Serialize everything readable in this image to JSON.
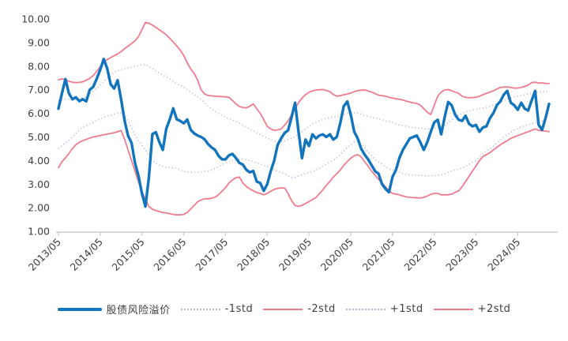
{
  "chart_data": {
    "type": "line",
    "title": "",
    "background": "#FFFFFF",
    "axis_color": "#CFCFCF",
    "text_color": "#3F3F3F",
    "grid": false,
    "legend_position": "bottom",
    "ylim": [
      1,
      10
    ],
    "y_tick_step": 1,
    "y_tick_labels": [
      "10.00",
      "9.00",
      "8.00",
      "7.00",
      "6.00",
      "5.00",
      "4.00",
      "3.00",
      "2.00",
      "1.00"
    ],
    "x_start": "2013/05",
    "x_end": "2025/02",
    "x_interval": "monthly",
    "x_tick_labels": [
      "2013/05",
      "2014/05",
      "2015/05",
      "2016/05",
      "2017/05",
      "2018/05",
      "2019/05",
      "2020/05",
      "2021/05",
      "2022/05",
      "2023/05",
      "2024/05"
    ],
    "series": [
      {
        "key": "risk-premium",
        "name": "股债风险溢价",
        "color": "#1274BC",
        "style": "solid",
        "width": 3.4,
        "z": 2,
        "values": [
          6.2,
          6.85,
          7.45,
          6.85,
          6.6,
          6.68,
          6.52,
          6.6,
          6.51,
          7.0,
          7.12,
          7.46,
          7.85,
          8.3,
          7.9,
          7.23,
          7.05,
          7.4,
          6.6,
          5.7,
          5.05,
          4.75,
          3.9,
          3.35,
          2.6,
          2.05,
          3.3,
          5.12,
          5.2,
          4.78,
          4.45,
          5.35,
          5.75,
          6.21,
          5.75,
          5.68,
          5.58,
          5.74,
          5.3,
          5.15,
          5.06,
          5.0,
          4.9,
          4.7,
          4.56,
          4.45,
          4.2,
          4.05,
          4.05,
          4.22,
          4.28,
          4.11,
          3.9,
          3.83,
          3.61,
          3.5,
          3.56,
          3.11,
          3.05,
          2.72,
          3.0,
          3.55,
          4.0,
          4.67,
          4.94,
          5.17,
          5.28,
          5.84,
          6.45,
          5.22,
          4.1,
          4.89,
          4.62,
          5.11,
          4.94,
          5.06,
          5.11,
          5.0,
          5.11,
          4.89,
          5.0,
          5.58,
          6.3,
          6.5,
          5.95,
          5.22,
          4.94,
          4.5,
          4.25,
          4.05,
          3.8,
          3.55,
          3.44,
          3.0,
          2.8,
          2.66,
          3.3,
          3.6,
          4.11,
          4.45,
          4.7,
          4.94,
          5.0,
          5.06,
          4.78,
          4.45,
          4.78,
          5.22,
          5.62,
          5.73,
          5.11,
          5.84,
          6.48,
          6.34,
          5.95,
          5.73,
          5.68,
          5.9,
          5.56,
          5.45,
          5.51,
          5.22,
          5.4,
          5.45,
          5.79,
          6.01,
          6.34,
          6.51,
          6.79,
          6.95,
          6.45,
          6.34,
          6.15,
          6.45,
          6.2,
          6.12,
          6.55,
          6.95,
          5.52,
          5.3,
          5.8,
          6.4
        ]
      },
      {
        "key": "minus-1std",
        "name": "-1std",
        "color": "#B9B6DB",
        "style": "dotted",
        "width": 1.7,
        "z": 1,
        "values": [
          4.5,
          4.62,
          4.75,
          4.85,
          5.0,
          5.15,
          5.28,
          5.4,
          5.48,
          5.55,
          5.62,
          5.7,
          5.75,
          5.82,
          5.88,
          5.92,
          5.97,
          6.0,
          6.03,
          5.9,
          5.7,
          5.4,
          5.08,
          4.85,
          4.65,
          4.45,
          4.2,
          4.0,
          3.89,
          3.8,
          3.75,
          3.72,
          3.7,
          3.68,
          3.67,
          3.6,
          3.55,
          3.52,
          3.5,
          3.5,
          3.5,
          3.52,
          3.55,
          3.56,
          3.6,
          3.67,
          3.74,
          3.82,
          3.89,
          3.95,
          4.0,
          4.03,
          4.06,
          4.06,
          4.03,
          4.0,
          3.95,
          3.9,
          3.85,
          3.8,
          3.75,
          3.7,
          3.62,
          3.55,
          3.5,
          3.44,
          3.35,
          3.28,
          3.3,
          3.35,
          3.4,
          3.46,
          3.5,
          3.54,
          3.61,
          3.68,
          3.77,
          3.85,
          3.94,
          4.02,
          4.11,
          4.25,
          4.4,
          4.55,
          4.68,
          4.78,
          4.8,
          4.7,
          4.56,
          4.35,
          4.22,
          4.05,
          3.94,
          3.85,
          3.72,
          3.65,
          3.6,
          3.56,
          3.5,
          3.44,
          3.41,
          3.39,
          3.38,
          3.38,
          3.37,
          3.36,
          3.35,
          3.35,
          3.36,
          3.37,
          3.39,
          3.44,
          3.5,
          3.56,
          3.61,
          3.64,
          3.67,
          3.75,
          3.84,
          3.93,
          4.02,
          4.15,
          4.28,
          4.42,
          4.5,
          4.6,
          4.75,
          4.88,
          5.0,
          5.1,
          5.2,
          5.3,
          5.36,
          5.42,
          5.47,
          5.52,
          5.56,
          5.6,
          5.64,
          5.67,
          5.7,
          5.72
        ]
      },
      {
        "key": "minus-2std",
        "name": "-2std",
        "color": "#EE7C8E",
        "style": "solid",
        "width": 1.8,
        "z": 1,
        "values": [
          3.7,
          3.95,
          4.11,
          4.3,
          4.5,
          4.67,
          4.78,
          4.84,
          4.9,
          4.95,
          5.0,
          5.03,
          5.06,
          5.09,
          5.12,
          5.15,
          5.18,
          5.22,
          5.27,
          4.9,
          4.45,
          4.0,
          3.55,
          3.1,
          2.7,
          2.35,
          2.05,
          1.94,
          1.88,
          1.84,
          1.8,
          1.78,
          1.75,
          1.72,
          1.7,
          1.7,
          1.72,
          1.8,
          1.95,
          2.1,
          2.25,
          2.33,
          2.38,
          2.38,
          2.4,
          2.45,
          2.55,
          2.7,
          2.85,
          3.05,
          3.18,
          3.27,
          3.3,
          3.05,
          2.9,
          2.8,
          2.72,
          2.65,
          2.61,
          2.55,
          2.61,
          2.7,
          2.78,
          2.82,
          2.84,
          2.84,
          2.6,
          2.3,
          2.1,
          2.06,
          2.1,
          2.18,
          2.26,
          2.35,
          2.43,
          2.6,
          2.76,
          2.95,
          3.11,
          3.3,
          3.44,
          3.6,
          3.8,
          3.95,
          4.1,
          4.2,
          4.25,
          4.15,
          3.95,
          3.77,
          3.55,
          3.38,
          3.2,
          3.05,
          2.89,
          2.72,
          2.61,
          2.58,
          2.55,
          2.5,
          2.46,
          2.44,
          2.43,
          2.42,
          2.41,
          2.44,
          2.5,
          2.57,
          2.61,
          2.61,
          2.55,
          2.55,
          2.55,
          2.58,
          2.65,
          2.72,
          2.89,
          3.11,
          3.33,
          3.56,
          3.77,
          4.0,
          4.17,
          4.25,
          4.33,
          4.45,
          4.56,
          4.67,
          4.76,
          4.84,
          4.94,
          5.0,
          5.06,
          5.11,
          5.17,
          5.22,
          5.28,
          5.34,
          5.28,
          5.26,
          5.25,
          5.22
        ]
      },
      {
        "key": "plus-1std",
        "name": "+1std",
        "color": "#B9B6DB",
        "style": "dotted",
        "width": 1.7,
        "z": 1,
        "values": [
          6.55,
          6.57,
          6.6,
          6.6,
          6.6,
          6.62,
          6.63,
          6.65,
          6.7,
          6.8,
          6.95,
          7.05,
          7.2,
          7.35,
          7.48,
          7.6,
          7.74,
          7.8,
          7.85,
          7.9,
          7.93,
          7.96,
          8.0,
          8.02,
          8.05,
          8.07,
          8.0,
          7.9,
          7.8,
          7.7,
          7.62,
          7.55,
          7.45,
          7.35,
          7.25,
          7.18,
          7.12,
          7.0,
          6.9,
          6.8,
          6.7,
          6.6,
          6.45,
          6.3,
          6.18,
          6.08,
          6.0,
          5.92,
          5.85,
          5.78,
          5.72,
          5.65,
          5.58,
          5.5,
          5.42,
          5.34,
          5.26,
          5.18,
          5.1,
          5.02,
          4.95,
          4.88,
          4.83,
          4.8,
          4.8,
          4.83,
          4.88,
          4.94,
          5.02,
          5.11,
          5.22,
          5.34,
          5.45,
          5.56,
          5.62,
          5.68,
          5.73,
          5.79,
          5.82,
          5.84,
          5.87,
          5.9,
          5.95,
          6.0,
          6.03,
          6.02,
          6.0,
          5.97,
          5.92,
          5.88,
          5.84,
          5.8,
          5.76,
          5.73,
          5.68,
          5.65,
          5.62,
          5.56,
          5.51,
          5.48,
          5.45,
          5.42,
          5.4,
          5.38,
          5.36,
          5.35,
          5.34,
          5.34,
          5.36,
          5.38,
          5.42,
          5.5,
          5.6,
          5.72,
          5.84,
          5.93,
          6.0,
          6.06,
          6.1,
          6.14,
          6.17,
          6.2,
          6.22,
          6.25,
          6.3,
          6.36,
          6.42,
          6.48,
          6.55,
          6.62,
          6.66,
          6.7,
          6.73,
          6.76,
          6.79,
          6.82,
          6.85,
          6.87,
          6.89,
          6.91,
          6.92,
          6.93
        ]
      },
      {
        "key": "plus-2std",
        "name": "+2std",
        "color": "#EE7C8E",
        "style": "solid",
        "width": 1.8,
        "z": 1,
        "values": [
          7.42,
          7.46,
          7.42,
          7.36,
          7.32,
          7.3,
          7.31,
          7.34,
          7.4,
          7.48,
          7.6,
          7.78,
          7.98,
          8.18,
          8.28,
          8.36,
          8.44,
          8.52,
          8.62,
          8.74,
          8.85,
          8.96,
          9.07,
          9.25,
          9.55,
          9.85,
          9.82,
          9.74,
          9.64,
          9.54,
          9.44,
          9.32,
          9.18,
          9.02,
          8.86,
          8.68,
          8.45,
          8.15,
          7.88,
          7.7,
          7.4,
          7.0,
          6.82,
          6.76,
          6.74,
          6.73,
          6.72,
          6.71,
          6.7,
          6.68,
          6.55,
          6.4,
          6.29,
          6.25,
          6.23,
          6.3,
          6.4,
          6.2,
          6.0,
          5.73,
          5.45,
          5.34,
          5.28,
          5.3,
          5.34,
          5.5,
          5.68,
          5.95,
          6.2,
          6.45,
          6.65,
          6.79,
          6.9,
          6.95,
          6.99,
          7.0,
          7.01,
          6.97,
          6.92,
          6.8,
          6.73,
          6.75,
          6.79,
          6.82,
          6.86,
          6.92,
          6.96,
          6.98,
          6.99,
          6.95,
          6.9,
          6.84,
          6.77,
          6.75,
          6.73,
          6.68,
          6.65,
          6.62,
          6.6,
          6.57,
          6.52,
          6.48,
          6.44,
          6.42,
          6.35,
          6.2,
          6.05,
          5.95,
          6.34,
          6.73,
          6.9,
          6.99,
          7.01,
          6.96,
          6.9,
          6.85,
          6.73,
          6.68,
          6.66,
          6.67,
          6.68,
          6.73,
          6.79,
          6.85,
          6.9,
          6.96,
          7.03,
          7.1,
          7.11,
          7.12,
          7.1,
          7.07,
          7.07,
          7.1,
          7.14,
          7.2,
          7.3,
          7.32,
          7.28,
          7.29,
          7.27,
          7.26
        ]
      }
    ]
  }
}
